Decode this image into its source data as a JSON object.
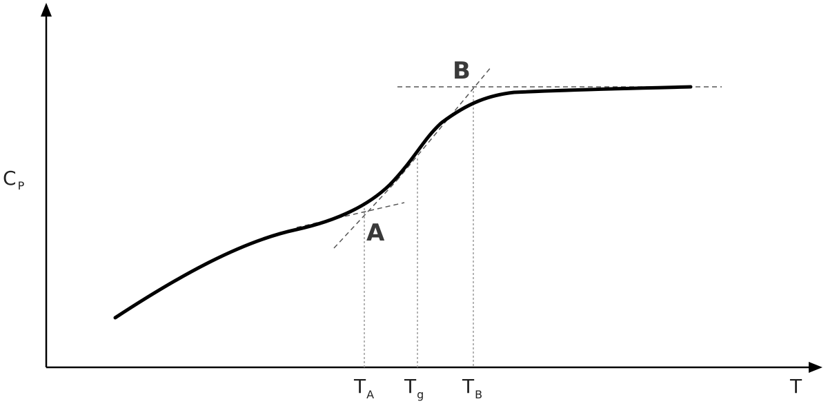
{
  "diagram": {
    "y_axis_label": {
      "main": "C",
      "sub": "P"
    },
    "x_axis_label": "T",
    "markers": [
      {
        "main": "T",
        "sub": "A"
      },
      {
        "main": "T",
        "sub": "g"
      },
      {
        "main": "T",
        "sub": "B"
      }
    ],
    "point_labels": [
      "A",
      "B"
    ]
  }
}
